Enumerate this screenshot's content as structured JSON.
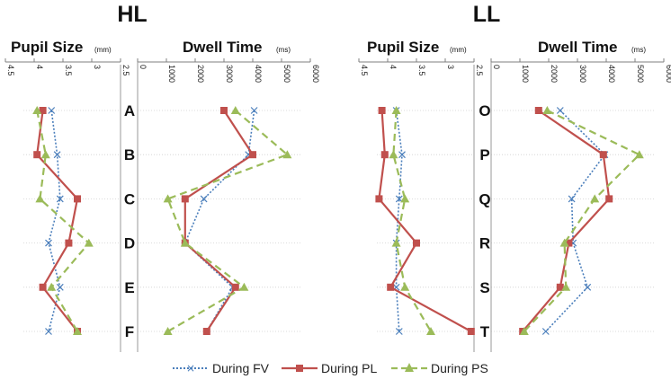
{
  "chart_data": {
    "type": "line",
    "orientation": "vertical-categories",
    "legend": [
      {
        "name": "During FV",
        "color": "#4a7ebb",
        "style": "dotted",
        "marker": "x"
      },
      {
        "name": "During PL",
        "color": "#c0504d",
        "style": "solid",
        "marker": "square"
      },
      {
        "name": "During PS",
        "color": "#9bbb59",
        "style": "dashed",
        "marker": "triangle"
      }
    ],
    "groups": [
      {
        "title": "HL",
        "categories": [
          "A",
          "B",
          "C",
          "D",
          "E",
          "F"
        ],
        "panels": [
          {
            "title": "Pupil Size",
            "unit": "(mm)",
            "xlim": [
              4.5,
              2.5
            ],
            "ticks": [
              "4.5",
              "4",
              "3.5",
              "3",
              "2.5"
            ],
            "series": [
              {
                "name": "During FV",
                "values": [
                  3.7,
                  3.6,
                  3.55,
                  3.75,
                  3.55,
                  3.75
                ]
              },
              {
                "name": "During PL",
                "values": [
                  3.85,
                  3.95,
                  3.25,
                  3.4,
                  3.85,
                  3.25
                ]
              },
              {
                "name": "During PS",
                "values": [
                  3.95,
                  3.8,
                  3.9,
                  3.05,
                  3.7,
                  3.25
                ]
              }
            ]
          },
          {
            "title": "Dwell Time",
            "unit": "(ms)",
            "xlim": [
              0,
              6000
            ],
            "ticks": [
              "0",
              "1000",
              "2000",
              "3000",
              "4000",
              "5000",
              "6000"
            ],
            "series": [
              {
                "name": "During FV",
                "values": [
                  4050,
                  3850,
                  2300,
                  1650,
                  3300,
                  2400
                ]
              },
              {
                "name": "During PL",
                "values": [
                  3000,
                  4000,
                  1650,
                  1650,
                  3400,
                  2400
                ]
              },
              {
                "name": "During PS",
                "values": [
                  3400,
                  5200,
                  1050,
                  1650,
                  3700,
                  1050
                ]
              }
            ]
          }
        ]
      },
      {
        "title": "LL",
        "categories": [
          "O",
          "P",
          "Q",
          "R",
          "S",
          "T"
        ],
        "panels": [
          {
            "title": "Pupil Size",
            "unit": "(mm)",
            "xlim": [
              4.5,
              2.5
            ],
            "ticks": [
              "4.5",
              "4",
              "3.5",
              "3",
              "2.5"
            ],
            "series": [
              {
                "name": "During FV",
                "values": [
                  3.85,
                  3.75,
                  3.8,
                  3.85,
                  3.85,
                  3.8
                ]
              },
              {
                "name": "During PL",
                "values": [
                  4.1,
                  4.05,
                  4.15,
                  3.5,
                  3.95,
                  2.55
                ]
              },
              {
                "name": "During PS",
                "values": [
                  3.85,
                  3.9,
                  3.7,
                  3.85,
                  3.7,
                  3.25
                ]
              }
            ]
          },
          {
            "title": "Dwell Time",
            "unit": "(ms)",
            "xlim": [
              0,
              6000
            ],
            "ticks": [
              "0",
              "1000",
              "2000",
              "3000",
              "4000",
              "5000",
              "6000"
            ],
            "series": [
              {
                "name": "During FV",
                "values": [
                  2400,
                  3950,
                  2800,
                  2850,
                  3350,
                  1900
                ]
              },
              {
                "name": "During PL",
                "values": [
                  1650,
                  3900,
                  4100,
                  2700,
                  2400,
                  1100
                ]
              },
              {
                "name": "During PS",
                "values": [
                  1950,
                  5150,
                  3600,
                  2550,
                  2600,
                  1150
                ]
              }
            ]
          }
        ]
      }
    ]
  }
}
